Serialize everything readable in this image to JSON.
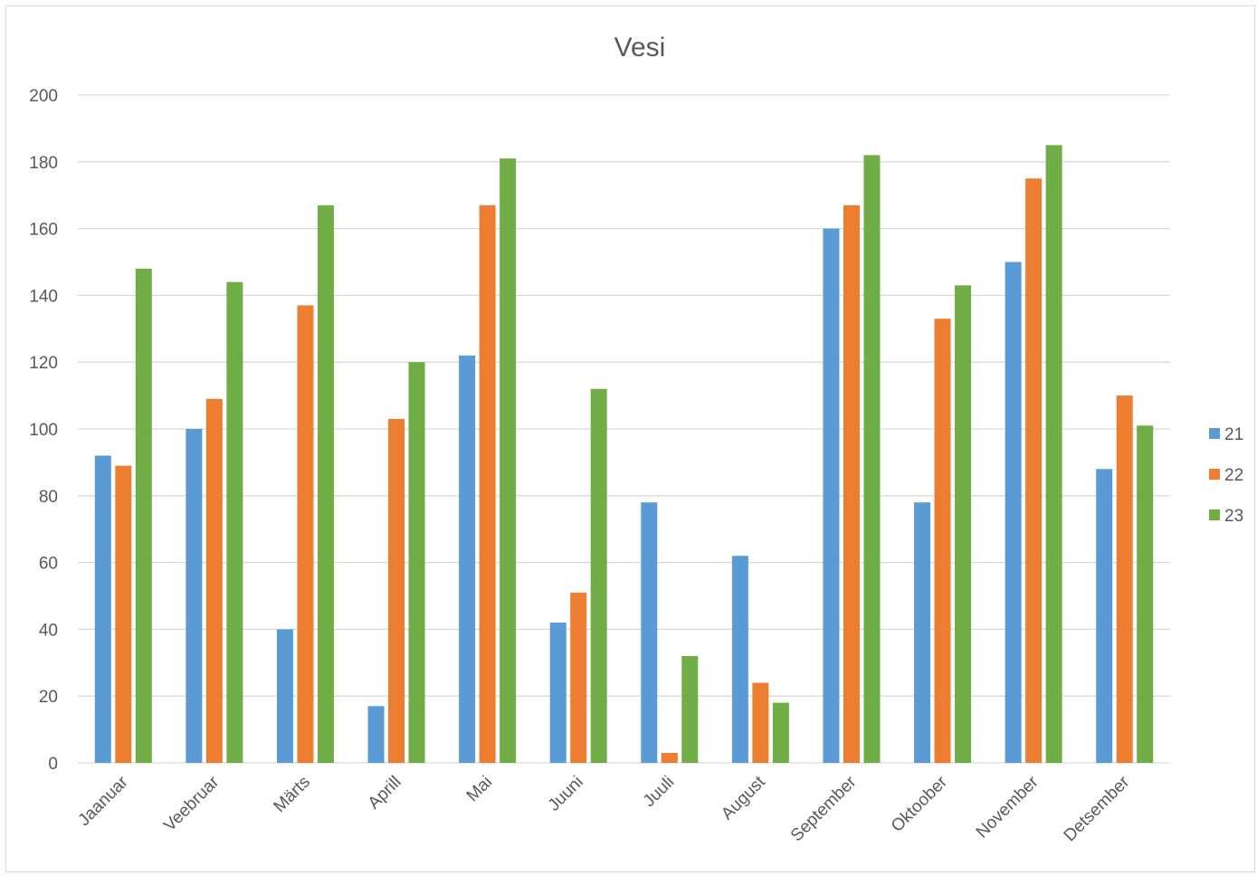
{
  "chart_data": {
    "type": "bar",
    "title": "Vesi",
    "xlabel": "",
    "ylabel": "",
    "ylim": [
      0,
      200
    ],
    "yticks": [
      0,
      20,
      40,
      60,
      80,
      100,
      120,
      140,
      160,
      180,
      200
    ],
    "grid": true,
    "legend_position": "right",
    "categories": [
      "Jaanuar",
      "Veebruar",
      "Märts",
      "Aprill",
      "Mai",
      "Juuni",
      "Juuli",
      "August",
      "September",
      "Oktoober",
      "November",
      "Detsember"
    ],
    "series": [
      {
        "name": "21",
        "color": "#5B9BD5",
        "values": [
          92,
          100,
          40,
          17,
          122,
          42,
          78,
          62,
          160,
          78,
          150,
          88
        ]
      },
      {
        "name": "22",
        "color": "#ED7D31",
        "values": [
          89,
          109,
          137,
          103,
          167,
          51,
          3,
          24,
          167,
          133,
          175,
          110
        ]
      },
      {
        "name": "23",
        "color": "#70AD47",
        "values": [
          148,
          144,
          167,
          120,
          181,
          112,
          32,
          18,
          182,
          143,
          185,
          101
        ]
      }
    ]
  }
}
